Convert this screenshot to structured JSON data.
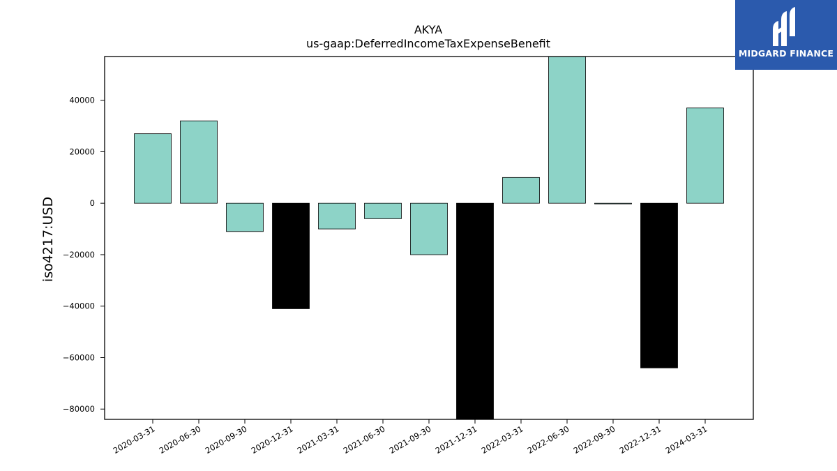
{
  "logo": {
    "text": "MIDGARD FINANCE",
    "bg_color": "#2b5aad"
  },
  "chart_data": {
    "type": "bar",
    "title": "AKYA",
    "subtitle": "us-gaap:DeferredIncomeTaxExpenseBenefit",
    "xlabel": "",
    "ylabel": "iso4217:USD",
    "ylim": [
      -84000,
      57000
    ],
    "yticks": [
      40000,
      20000,
      0,
      -20000,
      -40000,
      -60000,
      -80000
    ],
    "ytick_labels": [
      "40000",
      "20000",
      "0",
      "−20000",
      "−40000",
      "−60000",
      "−80000"
    ],
    "categories": [
      "2020-03-31",
      "2020-06-30",
      "2020-09-30",
      "2020-12-31",
      "2021-03-31",
      "2021-06-30",
      "2021-09-30",
      "2021-12-31",
      "2022-03-31",
      "2022-06-30",
      "2022-09-30",
      "2022-12-31",
      "2024-03-31"
    ],
    "values": [
      27000,
      32000,
      -11000,
      -41000,
      -10000,
      -6000,
      -20000,
      -84000,
      10000,
      57000,
      0,
      -64000,
      37000
    ],
    "bar_colors": [
      "#8dd3c7",
      "#8dd3c7",
      "#8dd3c7",
      "#000000",
      "#8dd3c7",
      "#8dd3c7",
      "#8dd3c7",
      "#000000",
      "#8dd3c7",
      "#8dd3c7",
      "#8dd3c7",
      "#000000",
      "#8dd3c7"
    ],
    "grid": false
  }
}
